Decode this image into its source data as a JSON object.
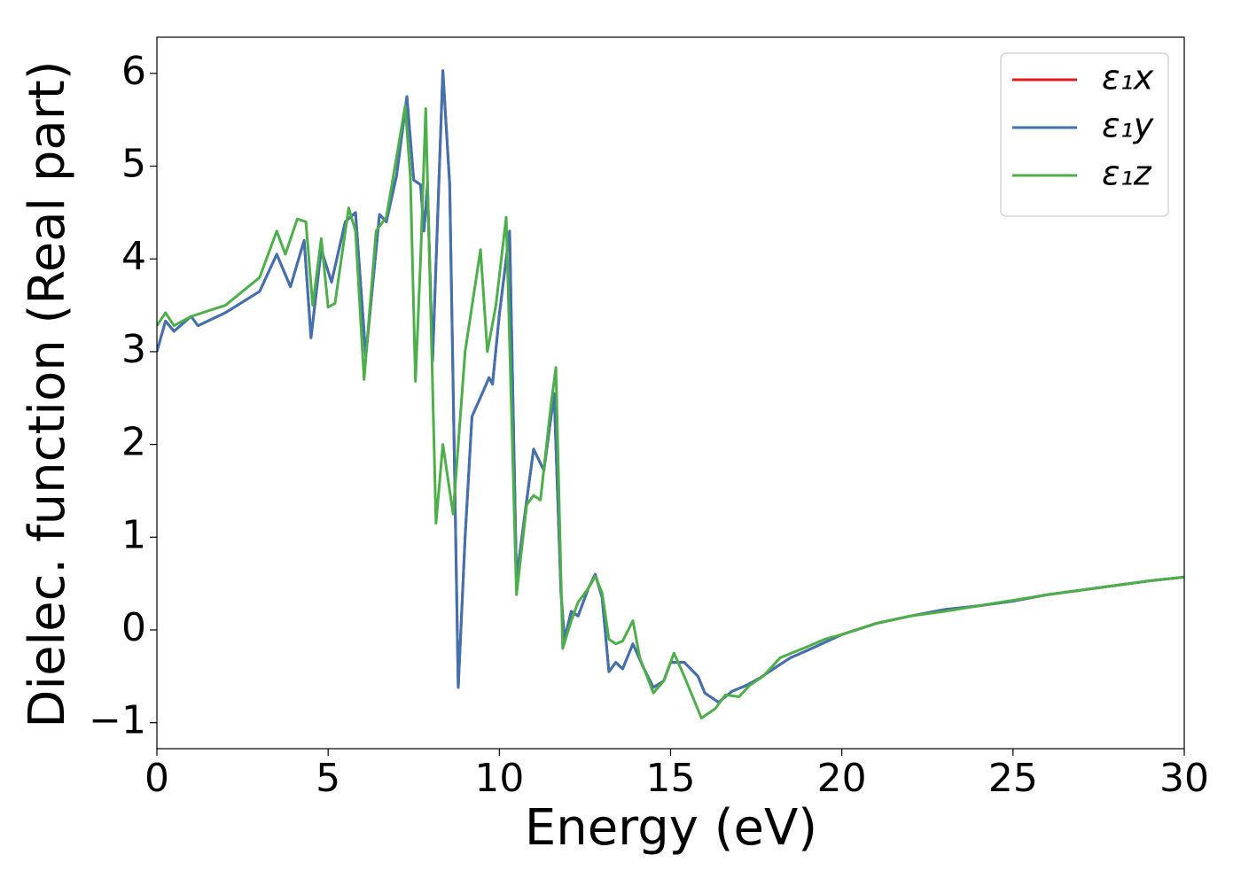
{
  "chart_data": {
    "type": "line",
    "xlabel": "Energy (eV)",
    "ylabel": "Dielec. function (Real part)",
    "xlim": [
      0,
      30
    ],
    "ylim": [
      -1.28,
      6.39
    ],
    "xticks": [
      0,
      5,
      10,
      15,
      20,
      25,
      30
    ],
    "yticks": [
      {
        "value": -1,
        "label": "−1"
      },
      0,
      1,
      2,
      3,
      4,
      5,
      6
    ],
    "legend": "upper right",
    "series": [
      {
        "name": "ε₁x",
        "color": "#e41a1c",
        "x": [
          0,
          0.25,
          0.5,
          1.0,
          1.2,
          2,
          3,
          3.5,
          3.9,
          4.3,
          4.5,
          4.8,
          5.1,
          5.5,
          5.8,
          6.1,
          6.5,
          6.7,
          7.0,
          7.3,
          7.5,
          7.7,
          7.8,
          7.9,
          8.05,
          8.35,
          8.55,
          8.8,
          9.0,
          9.2,
          9.5,
          9.7,
          9.8,
          10.0,
          10.3,
          10.5,
          10.8,
          11.0,
          11.3,
          11.6,
          11.8,
          11.9,
          12.1,
          12.3,
          12.6,
          12.8,
          13.0,
          13.2,
          13.4,
          13.6,
          13.9,
          14.2,
          14.5,
          14.8,
          15.0,
          15.4,
          15.8,
          16.0,
          16.4,
          16.8,
          17.2,
          17.6,
          18,
          18.5,
          19,
          20,
          21,
          22,
          23,
          24,
          25,
          26,
          27,
          28,
          29,
          30
        ],
        "values": [
          3.0,
          3.33,
          3.22,
          3.38,
          3.28,
          3.42,
          3.65,
          4.05,
          3.7,
          4.2,
          3.15,
          4.1,
          3.75,
          4.4,
          4.5,
          2.95,
          4.48,
          4.4,
          4.9,
          5.75,
          4.85,
          4.8,
          4.3,
          4.8,
          2.9,
          6.03,
          4.8,
          -0.62,
          1.0,
          2.3,
          2.55,
          2.72,
          2.65,
          3.4,
          4.3,
          0.55,
          1.4,
          1.95,
          1.72,
          2.55,
          0.4,
          -0.1,
          0.2,
          0.15,
          0.45,
          0.6,
          0.35,
          -0.45,
          -0.35,
          -0.42,
          -0.15,
          -0.4,
          -0.62,
          -0.55,
          -0.35,
          -0.35,
          -0.5,
          -0.68,
          -0.78,
          -0.66,
          -0.6,
          -0.52,
          -0.42,
          -0.3,
          -0.22,
          -0.05,
          0.07,
          0.15,
          0.22,
          0.26,
          0.31,
          0.38,
          0.43,
          0.48,
          0.53,
          0.57
        ]
      },
      {
        "name": "ε₁y",
        "color": "#3f72b0",
        "x": [
          0,
          0.25,
          0.5,
          1.0,
          1.2,
          2,
          3,
          3.5,
          3.9,
          4.3,
          4.5,
          4.8,
          5.1,
          5.5,
          5.8,
          6.1,
          6.5,
          6.7,
          7.0,
          7.3,
          7.5,
          7.7,
          7.8,
          7.9,
          8.05,
          8.35,
          8.55,
          8.8,
          9.0,
          9.2,
          9.5,
          9.7,
          9.8,
          10.0,
          10.3,
          10.5,
          10.8,
          11.0,
          11.3,
          11.6,
          11.8,
          11.9,
          12.1,
          12.3,
          12.6,
          12.8,
          13.0,
          13.2,
          13.4,
          13.6,
          13.9,
          14.2,
          14.5,
          14.8,
          15.0,
          15.4,
          15.8,
          16.0,
          16.4,
          16.8,
          17.2,
          17.6,
          18,
          18.5,
          19,
          20,
          21,
          22,
          23,
          24,
          25,
          26,
          27,
          28,
          29,
          30
        ],
        "values": [
          3.0,
          3.33,
          3.22,
          3.38,
          3.28,
          3.42,
          3.65,
          4.05,
          3.7,
          4.2,
          3.15,
          4.1,
          3.75,
          4.4,
          4.5,
          2.95,
          4.48,
          4.4,
          4.9,
          5.75,
          4.85,
          4.8,
          4.3,
          4.8,
          2.9,
          6.03,
          4.8,
          -0.62,
          1.0,
          2.3,
          2.55,
          2.72,
          2.65,
          3.4,
          4.3,
          0.55,
          1.4,
          1.95,
          1.72,
          2.55,
          0.4,
          -0.1,
          0.2,
          0.15,
          0.45,
          0.6,
          0.35,
          -0.45,
          -0.35,
          -0.42,
          -0.15,
          -0.4,
          -0.62,
          -0.55,
          -0.35,
          -0.35,
          -0.5,
          -0.68,
          -0.78,
          -0.66,
          -0.6,
          -0.52,
          -0.42,
          -0.3,
          -0.22,
          -0.05,
          0.07,
          0.15,
          0.22,
          0.26,
          0.31,
          0.38,
          0.43,
          0.48,
          0.53,
          0.57
        ]
      },
      {
        "name": "ε₁z",
        "color": "#4daf4a",
        "x": [
          0,
          0.25,
          0.5,
          1.0,
          2,
          3,
          3.5,
          3.75,
          4.1,
          4.35,
          4.55,
          4.8,
          5.0,
          5.2,
          5.6,
          5.8,
          6.05,
          6.4,
          6.7,
          7.0,
          7.25,
          7.4,
          7.55,
          7.7,
          7.85,
          8.15,
          8.35,
          8.65,
          9.0,
          9.45,
          9.65,
          9.9,
          10.2,
          10.5,
          10.8,
          11.0,
          11.2,
          11.5,
          11.65,
          11.85,
          12.1,
          12.3,
          12.6,
          12.8,
          13.0,
          13.2,
          13.4,
          13.6,
          13.9,
          14.1,
          14.5,
          14.8,
          15.1,
          15.4,
          15.9,
          16.3,
          16.6,
          17.0,
          17.3,
          17.7,
          18.2,
          19,
          19.5,
          20,
          21,
          22,
          23,
          24,
          25,
          26,
          27,
          28,
          29,
          30
        ],
        "values": [
          3.28,
          3.42,
          3.28,
          3.38,
          3.5,
          3.8,
          4.3,
          4.05,
          4.43,
          4.4,
          3.5,
          4.22,
          3.48,
          3.52,
          4.55,
          4.3,
          2.7,
          4.3,
          4.45,
          5.1,
          5.65,
          4.9,
          2.68,
          4.0,
          5.62,
          1.15,
          2.0,
          1.25,
          3.0,
          4.1,
          3.0,
          3.5,
          4.45,
          0.38,
          1.35,
          1.45,
          1.4,
          2.4,
          2.83,
          -0.2,
          0.1,
          0.3,
          0.45,
          0.58,
          0.4,
          -0.1,
          -0.15,
          -0.12,
          0.1,
          -0.3,
          -0.68,
          -0.55,
          -0.25,
          -0.5,
          -0.95,
          -0.85,
          -0.7,
          -0.72,
          -0.6,
          -0.5,
          -0.3,
          -0.18,
          -0.1,
          -0.05,
          0.07,
          0.15,
          0.2,
          0.26,
          0.32,
          0.38,
          0.43,
          0.48,
          0.53,
          0.57
        ]
      }
    ]
  }
}
